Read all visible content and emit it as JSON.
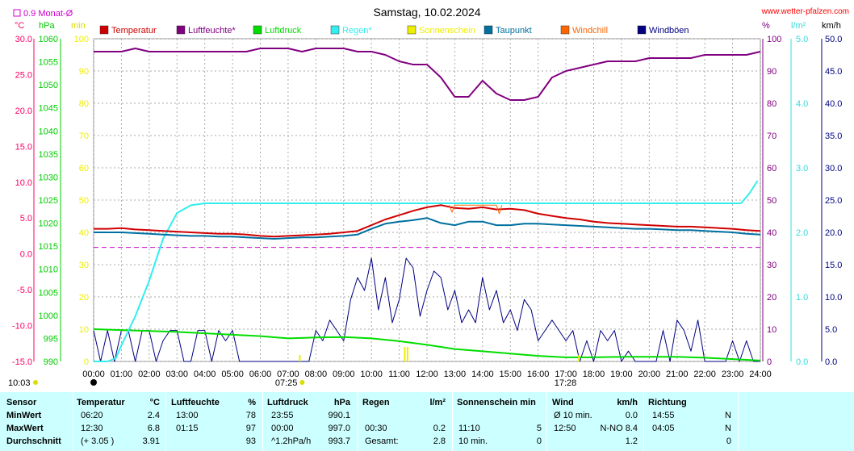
{
  "title": "Samstag, 10.02.2024",
  "site": "www.wetter-pfalzen.com",
  "monthly_avg_label": "0.9 Monat-Ø",
  "top_units": {
    "c": "°C",
    "hpa": "hPa",
    "min": "min",
    "pct": "%",
    "lm2": "l/m²",
    "kmh": "km/h"
  },
  "colors": {
    "temperature": "#d00000",
    "humidity": "#800080",
    "pressure": "#00dd00",
    "rain": "#33eeee",
    "sunshine": "#eeee00",
    "dewpoint": "#0070a0",
    "windchill": "#ff6600",
    "gusts": "#000080",
    "monthly": "#cc00cc",
    "grid": "#aaaaaa"
  },
  "chart_data": {
    "type": "line",
    "title": "Samstag, 10.02.2024",
    "x_unit": "hours",
    "xlim": [
      0,
      24
    ],
    "x_ticks": [
      "00:00",
      "01:00",
      "02:00",
      "03:00",
      "04:00",
      "05:00",
      "06:00",
      "07:00",
      "08:00",
      "09:00",
      "10:00",
      "11:00",
      "12:00",
      "13:00",
      "14:00",
      "15:00",
      "16:00",
      "17:00",
      "18:00",
      "19:00",
      "20:00",
      "21:00",
      "22:00",
      "23:00",
      "24:00"
    ],
    "axes": {
      "temp_c": {
        "ticks": [
          "30.0",
          "25.0",
          "20.0",
          "15.0",
          "10.0",
          "5.0",
          "0.0",
          "-5.0",
          "-10.0",
          "-15.0"
        ],
        "range": [
          -15,
          30
        ]
      },
      "pressure_hpa": {
        "ticks": [
          "1060",
          "1055",
          "1050",
          "1045",
          "1040",
          "1035",
          "1030",
          "1025",
          "1020",
          "1015",
          "1010",
          "1005",
          "1000",
          "995",
          "990"
        ],
        "range": [
          990,
          1060
        ]
      },
      "sun_min": {
        "ticks": [
          "100",
          "90",
          "80",
          "70",
          "60",
          "50",
          "40",
          "30",
          "20",
          "10",
          "0"
        ],
        "range": [
          0,
          100
        ]
      },
      "humidity_pct": {
        "ticks": [
          "100",
          "90",
          "80",
          "70",
          "60",
          "50",
          "40",
          "30",
          "20",
          "10",
          "0"
        ],
        "range": [
          0,
          100
        ]
      },
      "rain_lm2": {
        "ticks": [
          "5.0",
          "4.0",
          "3.0",
          "2.0",
          "1.0",
          "0.0"
        ],
        "range": [
          0,
          5
        ]
      },
      "wind_kmh": {
        "ticks": [
          "50.0",
          "45.0",
          "40.0",
          "35.0",
          "30.0",
          "25.0",
          "20.0",
          "15.0",
          "10.0",
          "5.0",
          "0.0"
        ],
        "range": [
          0,
          50
        ]
      }
    },
    "legend": [
      "Temperatur",
      "Luftfeuchte*",
      "Luftdruck",
      "Regen*",
      "Sonnenschein",
      "Taupunkt",
      "Windchill",
      "Windböen"
    ],
    "monthly_avg_temp": 0.9,
    "series": [
      {
        "name": "Temperatur",
        "axis": "temp_c",
        "x": [
          0,
          0.5,
          1,
          1.5,
          2,
          2.5,
          3,
          3.5,
          4,
          4.5,
          5,
          5.5,
          6,
          6.5,
          7,
          7.5,
          8,
          8.5,
          9,
          9.5,
          10,
          10.5,
          11,
          11.5,
          12,
          12.5,
          13,
          13.5,
          14,
          14.5,
          15,
          15.5,
          16,
          16.5,
          17,
          17.5,
          18,
          18.5,
          19,
          19.5,
          20,
          20.5,
          21,
          21.5,
          22,
          22.5,
          23,
          23.5,
          24
        ],
        "y": [
          3.5,
          3.5,
          3.6,
          3.4,
          3.3,
          3.2,
          3.1,
          3.0,
          2.9,
          2.8,
          2.8,
          2.7,
          2.5,
          2.4,
          2.5,
          2.6,
          2.7,
          2.8,
          3.0,
          3.2,
          4.0,
          4.8,
          5.4,
          6.0,
          6.5,
          6.8,
          6.4,
          6.3,
          6.5,
          6.2,
          6.3,
          6.1,
          5.6,
          5.3,
          5.0,
          4.8,
          4.5,
          4.3,
          4.2,
          4.1,
          4.0,
          3.9,
          3.8,
          3.8,
          3.7,
          3.6,
          3.5,
          3.3,
          3.2
        ]
      },
      {
        "name": "Luftfeuchte*",
        "axis": "humidity_pct",
        "x": [
          0,
          0.5,
          1,
          1.5,
          2,
          2.5,
          3,
          3.5,
          4,
          4.5,
          5,
          5.5,
          6,
          6.5,
          7,
          7.5,
          8,
          8.5,
          9,
          9.5,
          10,
          10.5,
          11,
          11.5,
          12,
          12.5,
          13,
          13.5,
          14,
          14.5,
          15,
          15.5,
          16,
          16.5,
          17,
          17.5,
          18,
          18.5,
          19,
          19.5,
          20,
          20.5,
          21,
          21.5,
          22,
          22.5,
          23,
          23.5,
          24
        ],
        "y": [
          96,
          96,
          96,
          97,
          96,
          96,
          96,
          96,
          96,
          96,
          96,
          96,
          97,
          97,
          97,
          96,
          97,
          97,
          97,
          96,
          96,
          95,
          93,
          92,
          92,
          88,
          82,
          82,
          87,
          83,
          81,
          81,
          82,
          88,
          90,
          91,
          92,
          93,
          93,
          93,
          94,
          94,
          94,
          94,
          95,
          95,
          95,
          95,
          96
        ]
      },
      {
        "name": "Luftdruck",
        "axis": "pressure_hpa",
        "x": [
          0,
          1,
          2,
          3,
          4,
          5,
          6,
          7,
          8,
          9,
          10,
          11,
          12,
          13,
          14,
          15,
          16,
          17,
          18,
          19,
          20,
          21,
          22,
          23,
          24
        ],
        "y": [
          997.0,
          996.8,
          996.6,
          996.4,
          996.1,
          995.8,
          995.5,
          995.0,
          995.2,
          995.3,
          995.0,
          994.4,
          993.6,
          992.7,
          992.2,
          991.7,
          991.2,
          990.9,
          990.9,
          991.0,
          991.0,
          991.0,
          990.8,
          990.5,
          990.2
        ]
      },
      {
        "name": "Regen*",
        "axis": "rain_lm2",
        "x": [
          0,
          0.5,
          0.8,
          1,
          1.5,
          2,
          2.5,
          3,
          3.5,
          4,
          5,
          6,
          7,
          8,
          9,
          10,
          11,
          12,
          13,
          14,
          15,
          16,
          17,
          18,
          19,
          20,
          21,
          22,
          23,
          23.3,
          23.6,
          23.9
        ],
        "y": [
          0,
          0,
          0.05,
          0.25,
          0.7,
          1.25,
          1.9,
          2.3,
          2.42,
          2.45,
          2.45,
          2.45,
          2.45,
          2.45,
          2.45,
          2.45,
          2.45,
          2.45,
          2.45,
          2.45,
          2.45,
          2.45,
          2.45,
          2.45,
          2.45,
          2.45,
          2.45,
          2.45,
          2.45,
          2.45,
          2.6,
          2.8
        ]
      },
      {
        "name": "Taupunkt",
        "axis": "temp_c",
        "x": [
          0,
          0.5,
          1,
          1.5,
          2,
          2.5,
          3,
          3.5,
          4,
          4.5,
          5,
          5.5,
          6,
          6.5,
          7,
          7.5,
          8,
          8.5,
          9,
          9.5,
          10,
          10.5,
          11,
          11.5,
          12,
          12.5,
          13,
          13.5,
          14,
          14.5,
          15,
          15.5,
          16,
          16.5,
          17,
          17.5,
          18,
          18.5,
          19,
          19.5,
          20,
          20.5,
          21,
          21.5,
          22,
          22.5,
          23,
          23.5,
          24
        ],
        "y": [
          3.0,
          3.0,
          3.0,
          2.9,
          2.8,
          2.7,
          2.6,
          2.5,
          2.5,
          2.4,
          2.4,
          2.3,
          2.2,
          2.1,
          2.2,
          2.3,
          2.3,
          2.4,
          2.5,
          2.7,
          3.5,
          4.2,
          4.5,
          4.7,
          5.0,
          4.3,
          4.0,
          4.5,
          4.5,
          4.0,
          4.0,
          4.2,
          4.2,
          4.1,
          4.0,
          3.9,
          3.8,
          3.7,
          3.6,
          3.5,
          3.5,
          3.4,
          3.3,
          3.3,
          3.2,
          3.1,
          3.0,
          2.8,
          2.7
        ]
      },
      {
        "name": "Windböen",
        "axis": "wind_kmh",
        "x": [
          0,
          0.25,
          0.5,
          0.75,
          1,
          1.25,
          1.5,
          1.75,
          2,
          2.25,
          2.5,
          2.75,
          3,
          3.25,
          3.5,
          3.75,
          4,
          4.25,
          4.5,
          4.75,
          5,
          5.25,
          5.5,
          5.75,
          6,
          6.25,
          6.5,
          6.75,
          7,
          7.25,
          7.5,
          7.75,
          8,
          8.25,
          8.5,
          8.75,
          9,
          9.25,
          9.5,
          9.75,
          10,
          10.25,
          10.5,
          10.75,
          11,
          11.25,
          11.5,
          11.75,
          12,
          12.25,
          12.5,
          12.75,
          13,
          13.25,
          13.5,
          13.75,
          14,
          14.25,
          14.5,
          14.75,
          15,
          15.25,
          15.5,
          15.75,
          16,
          16.25,
          16.5,
          16.75,
          17,
          17.25,
          17.5,
          17.75,
          18,
          18.25,
          18.5,
          18.75,
          19,
          19.25,
          19.5,
          19.75,
          20,
          20.25,
          20.5,
          20.75,
          21,
          21.25,
          21.5,
          21.75,
          22,
          22.25,
          22.5,
          22.75,
          23,
          23.25,
          23.5,
          23.75,
          24
        ],
        "y": [
          4.8,
          0,
          4.8,
          0,
          4.8,
          4.8,
          0,
          4.8,
          4.8,
          0,
          3.2,
          4.8,
          4.8,
          0,
          0,
          4.8,
          4.8,
          0,
          4.8,
          3.2,
          4.8,
          0,
          0,
          0,
          0,
          0,
          0,
          0,
          0,
          0,
          0,
          0,
          4.8,
          3.2,
          6.4,
          4.8,
          3.2,
          9.6,
          13,
          11,
          16,
          8,
          13,
          6,
          9.6,
          16,
          14.5,
          7,
          11,
          14,
          13,
          8,
          11,
          6,
          8,
          6,
          13,
          8,
          11,
          6,
          8,
          4.8,
          9.6,
          8,
          3.2,
          4.8,
          6.4,
          4.8,
          3.2,
          4.8,
          0,
          3.2,
          0,
          4.8,
          3.2,
          4.8,
          0,
          1.6,
          0,
          0,
          0,
          0,
          4.8,
          0,
          6.4,
          4.8,
          1.6,
          6.4,
          0,
          0,
          0,
          0,
          3.2,
          0,
          3.2,
          0,
          0
        ]
      },
      {
        "name": "Windchill",
        "axis": "temp_c",
        "x": [
          12.8,
          12.9,
          13.0,
          13.1,
          14.5,
          14.6,
          14.7
        ],
        "y": [
          6.8,
          5.8,
          6.8,
          6.8,
          6.8,
          5.6,
          6.8
        ]
      }
    ],
    "sunshine_x": [
      11.2,
      11.3
    ],
    "sunrise": "07:25",
    "sunset": "17:28",
    "daylength": "10:03"
  },
  "stats": {
    "headers": {
      "sensor": "Sensor",
      "temp": "Temperatur",
      "temp_unit": "°C",
      "hum": "Luftfeuchte",
      "hum_unit": "%",
      "press": "Luftdruck",
      "press_unit": "hPa",
      "rain": "Regen",
      "rain_unit": "l/m²",
      "sun": "Sonnenschein min",
      "wind": "Wind",
      "wind_unit": "km/h",
      "dir": "Richtung"
    },
    "rows": [
      {
        "label": "MinWert",
        "t_time": "06:20",
        "t_val": "2.4",
        "h_time": "13:00",
        "h_val": "78",
        "p_time": "23:55",
        "p_val": "990.1",
        "r_time": "",
        "r_val": "",
        "s_time": "",
        "s_val": "",
        "w_time": "Ø 10 min.",
        "w_val": "0.0",
        "d_time": "14:55",
        "d_val": "N"
      },
      {
        "label": "MaxWert",
        "t_time": "12:30",
        "t_val": "6.8",
        "h_time": "01:15",
        "h_val": "97",
        "p_time": "00:00",
        "p_val": "997.0",
        "r_time": "00:30",
        "r_val": "0.2",
        "s_time": "11:10",
        "s_val": "5",
        "w_time": "12:50",
        "w_val": "N-NO 8.4",
        "d_time": "04:05",
        "d_val": "N"
      },
      {
        "label": "Durchschnitt",
        "t_time": "(+ 3.05 )",
        "t_val": "3.91",
        "h_time": "",
        "h_val": "93",
        "p_time": "^1.2hPa/h",
        "p_val": "993.7",
        "r_time": "Gesamt:",
        "r_val": "2.8",
        "s_time": "10 min.",
        "s_val": "0",
        "w_time": "",
        "w_val": "1.2",
        "d_time": "",
        "d_val": "0"
      }
    ]
  }
}
